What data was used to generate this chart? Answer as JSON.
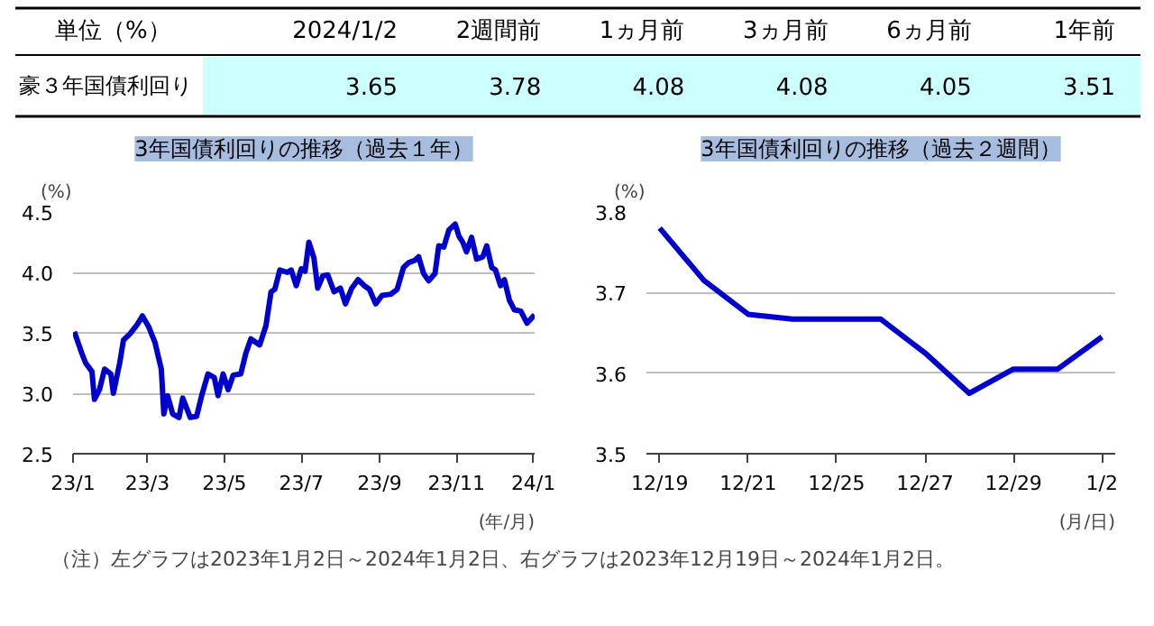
{
  "chart_data": [
    {
      "type": "other",
      "title": "単位（%）",
      "categories": [
        "2024/1/2",
        "2週間前",
        "1ヵ月前",
        "3ヵ月前",
        "6ヵ月前",
        "1年前"
      ],
      "series": [
        {
          "name": "豪３年国債利回り",
          "values": [
            3.65,
            3.78,
            4.08,
            4.08,
            4.05,
            3.51
          ]
        }
      ],
      "data_labels": true
    },
    {
      "type": "line",
      "title": "3年国債利回りの推移（過去１年）",
      "xlabel": "(年/月)",
      "ylabel": "(%)",
      "x": [
        "2023-01-02",
        "2023-01-04",
        "2023-01-08",
        "2023-01-11",
        "2023-01-16",
        "2023-01-18",
        "2023-01-22",
        "2023-01-26",
        "2023-01-31",
        "2023-02-02",
        "2023-02-07",
        "2023-02-10",
        "2023-02-15",
        "2023-02-21",
        "2023-02-25",
        "2023-03-02",
        "2023-03-07",
        "2023-03-12",
        "2023-03-14",
        "2023-03-17",
        "2023-03-21",
        "2023-03-26",
        "2023-03-29",
        "2023-04-04",
        "2023-04-09",
        "2023-04-13",
        "2023-04-18",
        "2023-04-23",
        "2023-04-26",
        "2023-04-30",
        "2023-05-04",
        "2023-05-08",
        "2023-05-14",
        "2023-05-18",
        "2023-05-22",
        "2023-05-29",
        "2023-06-03",
        "2023-06-07",
        "2023-06-10",
        "2023-06-14",
        "2023-06-20",
        "2023-06-23",
        "2023-06-27",
        "2023-07-01",
        "2023-07-04",
        "2023-07-07",
        "2023-07-11",
        "2023-07-14",
        "2023-07-18",
        "2023-07-22",
        "2023-07-27",
        "2023-08-01",
        "2023-08-05",
        "2023-08-10",
        "2023-08-15",
        "2023-08-20",
        "2023-08-24",
        "2023-08-29",
        "2023-09-03",
        "2023-09-10",
        "2023-09-15",
        "2023-09-20",
        "2023-09-24",
        "2023-09-29",
        "2023-10-02",
        "2023-10-06",
        "2023-10-10",
        "2023-10-15",
        "2023-10-18",
        "2023-10-22",
        "2023-10-26",
        "2023-10-31",
        "2023-11-03",
        "2023-11-06",
        "2023-11-09",
        "2023-11-13",
        "2023-11-17",
        "2023-11-22",
        "2023-11-25",
        "2023-11-29",
        "2023-12-02",
        "2023-12-06",
        "2023-12-09",
        "2023-12-13",
        "2023-12-17",
        "2023-12-22",
        "2023-12-27",
        "2024-01-02"
      ],
      "series": [
        {
          "color": "#0000cc",
          "values": [
            3.51,
            3.45,
            3.33,
            3.25,
            3.18,
            2.95,
            3.03,
            3.2,
            3.16,
            3.0,
            3.25,
            3.44,
            3.49,
            3.57,
            3.64,
            3.55,
            3.42,
            3.2,
            2.83,
            2.98,
            2.83,
            2.8,
            2.96,
            2.8,
            2.81,
            2.98,
            3.16,
            3.13,
            2.98,
            3.16,
            3.03,
            3.15,
            3.16,
            3.33,
            3.45,
            3.4,
            3.56,
            3.84,
            3.86,
            4.02,
            4.0,
            4.02,
            3.89,
            4.03,
            4.01,
            4.25,
            4.12,
            3.87,
            3.97,
            3.98,
            3.84,
            3.87,
            3.74,
            3.87,
            3.94,
            3.89,
            3.86,
            3.74,
            3.81,
            3.82,
            3.86,
            4.04,
            4.08,
            4.1,
            4.13,
            3.99,
            3.93,
            3.99,
            4.22,
            4.21,
            4.35,
            4.4,
            4.3,
            4.25,
            4.17,
            4.29,
            4.11,
            4.13,
            4.22,
            4.04,
            4.02,
            3.89,
            3.94,
            3.77,
            3.69,
            3.68,
            3.58,
            3.65
          ]
        }
      ],
      "xlim": [
        "2023-01-01",
        "2024-01-02"
      ],
      "xticks": [
        {
          "value": "2023-01-01",
          "label": "23/1"
        },
        {
          "value": "2023-03-01",
          "label": "23/3"
        },
        {
          "value": "2023-05-01",
          "label": "23/5"
        },
        {
          "value": "2023-07-01",
          "label": "23/7"
        },
        {
          "value": "2023-09-01",
          "label": "23/9"
        },
        {
          "value": "2023-11-01",
          "label": "23/11"
        },
        {
          "value": "2024-01-01",
          "label": "24/1"
        }
      ],
      "ylim": [
        2.5,
        4.5
      ],
      "yticks": [
        2.5,
        {
          "value": 3.0,
          "label": "3.0"
        },
        3.5,
        {
          "value": 4.0,
          "label": "4.0"
        },
        4.5
      ],
      "grid": "y",
      "line_style": "solid"
    },
    {
      "type": "line",
      "title": "3年国債利回りの推移（過去２週間）",
      "xlabel": "(月/日)",
      "ylabel": "(%)",
      "categories": [
        "12/19",
        null,
        "12/21",
        null,
        "12/25",
        null,
        "12/27",
        null,
        "12/29",
        null,
        "1/2"
      ],
      "series": [
        {
          "color": "#0000cc",
          "values": [
            3.78,
            3.715,
            3.673,
            3.667,
            3.667,
            3.667,
            3.625,
            3.575,
            3.605,
            3.605,
            3.645
          ]
        }
      ],
      "ylim": [
        3.5,
        3.8
      ],
      "yticks": [
        3.5,
        3.6,
        3.7,
        3.8
      ],
      "grid": "y",
      "line_style": "solid",
      "annotations": [
        "（注）左グラフは2023年1月2日～2024年1月2日、右グラフは2023年12月19日～2024年1月2日。"
      ]
    }
  ]
}
